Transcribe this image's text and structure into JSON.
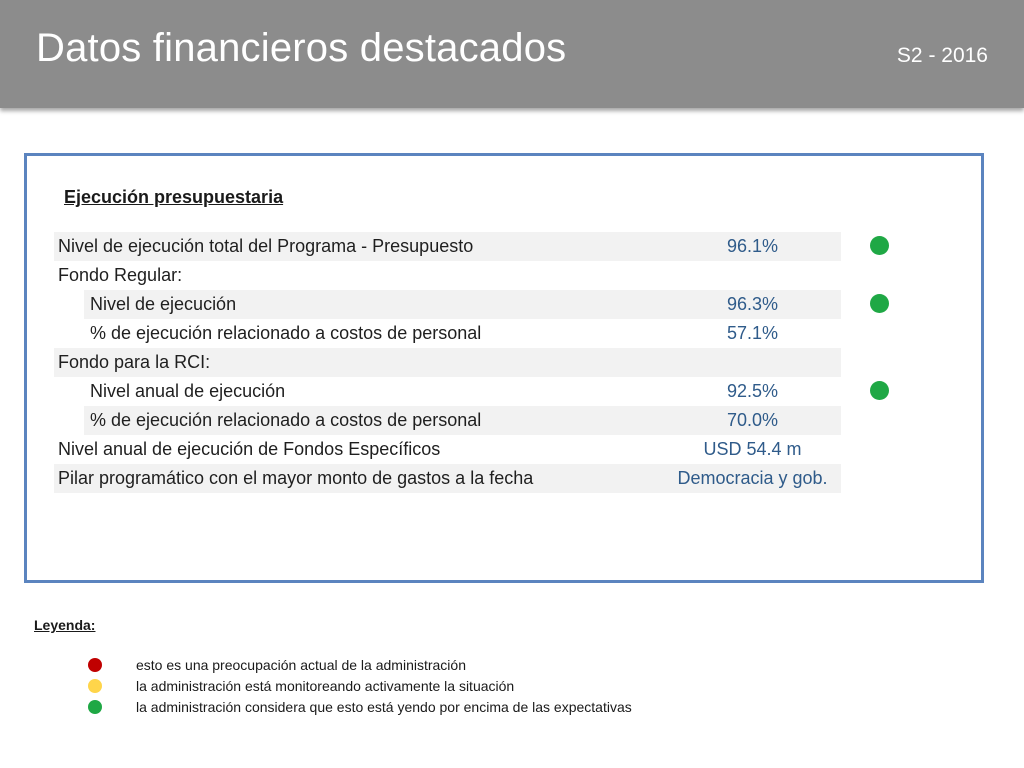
{
  "header": {
    "title": "Datos financieros destacados",
    "period": "S2 - 2016"
  },
  "panel": {
    "section_title": "Ejecución presupuestaria",
    "rows": [
      {
        "label": "Nivel de ejecución total del Programa - Presupuesto",
        "value": "96.1%",
        "indent": false,
        "shaded": true,
        "status": "green"
      },
      {
        "label": "Fondo Regular:",
        "value": "",
        "indent": false,
        "shaded": false,
        "status": ""
      },
      {
        "label": "Nivel de ejecución",
        "value": "96.3%",
        "indent": true,
        "shaded": true,
        "status": "green"
      },
      {
        "label": "% de ejecución relacionado a costos de personal",
        "value": "57.1%",
        "indent": true,
        "shaded": false,
        "status": ""
      },
      {
        "label": "Fondo para la RCI:",
        "value": "",
        "indent": false,
        "shaded": true,
        "status": ""
      },
      {
        "label": "Nivel anual de ejecución",
        "value": "92.5%",
        "indent": true,
        "shaded": false,
        "status": "green"
      },
      {
        "label": "% de ejecución relacionado a costos de personal",
        "value": "70.0%",
        "indent": true,
        "shaded": true,
        "status": ""
      },
      {
        "label": "Nivel anual de ejecución de Fondos Específicos",
        "value": "USD 54.4 m",
        "indent": false,
        "shaded": false,
        "status": ""
      },
      {
        "label": "Pilar programático con el mayor monto de gastos a la fecha",
        "value": "Democracia y gob.",
        "indent": false,
        "shaded": true,
        "status": ""
      }
    ]
  },
  "legend": {
    "title": "Leyenda:",
    "items": [
      {
        "color": "#c00000",
        "text": "esto es una preocupación actual de la administración"
      },
      {
        "color": "#ffd54a",
        "text": "la administración está monitoreando activamente la situación"
      },
      {
        "color": "#1fa845",
        "text": "la administración considera que esto está yendo por encima de las expectativas"
      }
    ]
  },
  "colors": {
    "header_bg": "#8c8c8c",
    "panel_border": "#5b84bf",
    "value_text": "#2f5b8a",
    "status_green": "#1fa845"
  }
}
